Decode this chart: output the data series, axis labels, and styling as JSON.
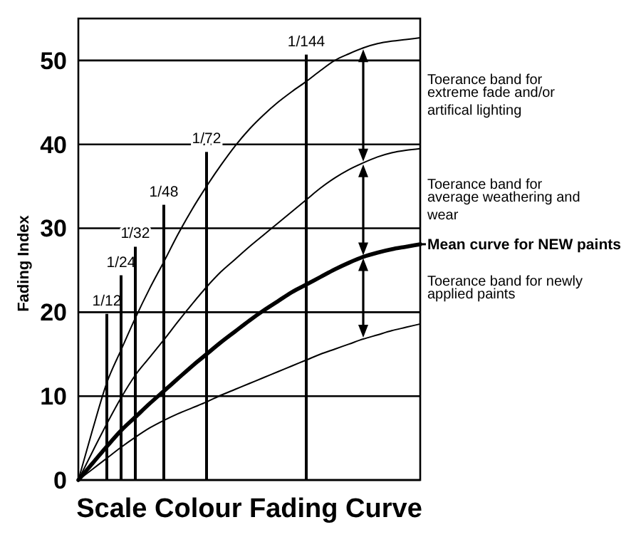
{
  "chart_data": {
    "type": "line",
    "title": "Scale Colour Fading Curve",
    "ylabel": "Fading Index",
    "categories": [
      null,
      null,
      null,
      null,
      null,
      null,
      null,
      null,
      null,
      null,
      null,
      null,
      null,
      null,
      null,
      null,
      null,
      null,
      null,
      null,
      null,
      null,
      null,
      null,
      null
    ],
    "series": [
      {
        "color": "#000000",
        "values": [
          0,
          6,
          11.6,
          15.5,
          19.3,
          22.8,
          26,
          29.3,
          32.3,
          35,
          37.5,
          39.8,
          41.8,
          43.5,
          45,
          46.3,
          47.5,
          48.8,
          50,
          50.8,
          51.5,
          52,
          52.3,
          52.5,
          52.7
        ]
      },
      {
        "color": "#000000",
        "values": [
          0,
          3.4,
          6.7,
          9.8,
          12.5,
          14.6,
          16.7,
          18.9,
          21,
          23,
          24.8,
          26.3,
          27.8,
          29.2,
          30.6,
          32,
          33.4,
          34.8,
          36,
          37,
          37.8,
          38.5,
          39,
          39.3,
          39.5
        ]
      },
      {
        "name": "Mean curve for NEW paints",
        "color": "#000000",
        "values": [
          0,
          2,
          4,
          5.9,
          7.5,
          9.1,
          10.6,
          12.1,
          13.6,
          15,
          16.4,
          17.7,
          19,
          20.2,
          21.3,
          22.4,
          23.3,
          24.2,
          25.1,
          25.9,
          26.6,
          27.1,
          27.5,
          27.8,
          28.1
        ]
      },
      {
        "color": "#000000",
        "values": [
          0,
          1.3,
          2.6,
          3.9,
          5.1,
          6.2,
          7.1,
          7.9,
          8.6,
          9.3,
          10.1,
          10.8,
          11.5,
          12.2,
          12.9,
          13.6,
          14.3,
          15,
          15.6,
          16.2,
          16.8,
          17.3,
          17.8,
          18.2,
          18.6
        ]
      },
      {
        "type": "bar",
        "name": "1/12",
        "color": "#000000",
        "values": [
          null,
          null,
          19.8,
          null,
          null,
          null,
          null,
          null,
          null,
          null,
          null,
          null,
          null,
          null,
          null,
          null,
          null,
          null,
          null,
          null,
          null,
          null,
          null,
          null,
          null
        ]
      },
      {
        "type": "bar",
        "name": "1/24",
        "color": "#000000",
        "values": [
          null,
          null,
          null,
          24.4,
          null,
          null,
          null,
          null,
          null,
          null,
          null,
          null,
          null,
          null,
          null,
          null,
          null,
          null,
          null,
          null,
          null,
          null,
          null,
          null,
          null
        ]
      },
      {
        "type": "bar",
        "name": "1/32",
        "color": "#000000",
        "values": [
          null,
          null,
          null,
          null,
          27.8,
          null,
          null,
          null,
          null,
          null,
          null,
          null,
          null,
          null,
          null,
          null,
          null,
          null,
          null,
          null,
          null,
          null,
          null,
          null,
          null
        ]
      },
      {
        "type": "bar",
        "name": "1/48",
        "color": "#000000",
        "values": [
          null,
          null,
          null,
          null,
          null,
          null,
          32.8,
          null,
          null,
          null,
          null,
          null,
          null,
          null,
          null,
          null,
          null,
          null,
          null,
          null,
          null,
          null,
          null,
          null,
          null
        ]
      },
      {
        "type": "bar",
        "name": "1/72",
        "color": "#000000",
        "values": [
          null,
          null,
          null,
          null,
          null,
          null,
          null,
          null,
          null,
          39.1,
          null,
          null,
          null,
          null,
          null,
          null,
          null,
          null,
          null,
          null,
          null,
          null,
          null,
          null,
          null
        ]
      },
      {
        "type": "bar",
        "name": "1/144",
        "color": "#000000",
        "values": [
          null,
          null,
          null,
          null,
          null,
          null,
          null,
          null,
          null,
          null,
          null,
          null,
          null,
          null,
          null,
          null,
          50.7,
          null,
          null,
          null,
          null,
          null,
          null,
          null,
          null
        ]
      }
    ],
    "ylim": [
      0,
      55
    ],
    "yticks": [
      0,
      10,
      20,
      30,
      40,
      50
    ],
    "grid": "y",
    "tick_labels": "y",
    "annotations": [
      "Toerance band for extreme fade and/or artifical lighting",
      "Toerance band for average weathering and wear",
      "Toerance band for newly applied paints"
    ]
  }
}
